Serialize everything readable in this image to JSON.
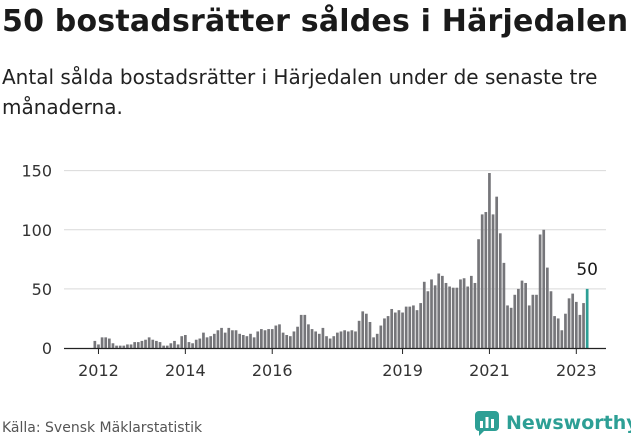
{
  "title": "50 bostadsrätter såldes i Härjedalen",
  "subtitle": "Antal sålda bostadsrätter i Härjedalen under de senaste tre månaderna.",
  "source": "Källa: Svensk Mäklarstatistik",
  "brand": "Newsworthy",
  "colors": {
    "bar": "#76767a",
    "highlight": "#2d9f95",
    "grid": "#d9d9d9",
    "brand": "#2d9f95"
  },
  "chart_data": {
    "type": "bar",
    "xlabel": "",
    "ylabel": "",
    "ylim": [
      0,
      170
    ],
    "yticks": [
      0,
      50,
      100,
      150
    ],
    "xticks": [
      "2012",
      "2014",
      "2016",
      "2019",
      "2021",
      "2023"
    ],
    "grid": true,
    "highlight_label": "50",
    "values": [
      6,
      3,
      9,
      9,
      8,
      4,
      2,
      2,
      2,
      3,
      3,
      5,
      5,
      6,
      7,
      9,
      7,
      6,
      5,
      2,
      2,
      4,
      6,
      3,
      10,
      11,
      5,
      4,
      7,
      8,
      13,
      9,
      10,
      12,
      15,
      17,
      13,
      17,
      15,
      15,
      12,
      11,
      10,
      12,
      9,
      14,
      16,
      15,
      16,
      16,
      19,
      20,
      13,
      11,
      10,
      14,
      18,
      28,
      28,
      20,
      16,
      14,
      12,
      17,
      10,
      8,
      10,
      13,
      14,
      15,
      14,
      15,
      14,
      23,
      31,
      29,
      22,
      9,
      12,
      19,
      25,
      27,
      33,
      30,
      32,
      30,
      35,
      35,
      36,
      32,
      38,
      56,
      48,
      58,
      53,
      63,
      61,
      55,
      52,
      51,
      51,
      58,
      59,
      52,
      61,
      55,
      92,
      113,
      115,
      148,
      113,
      128,
      97,
      72,
      36,
      34,
      45,
      50,
      57,
      55,
      36,
      45,
      45,
      96,
      100,
      68,
      48,
      27,
      25,
      15,
      29,
      42,
      46,
      39,
      28,
      38,
      50
    ]
  }
}
